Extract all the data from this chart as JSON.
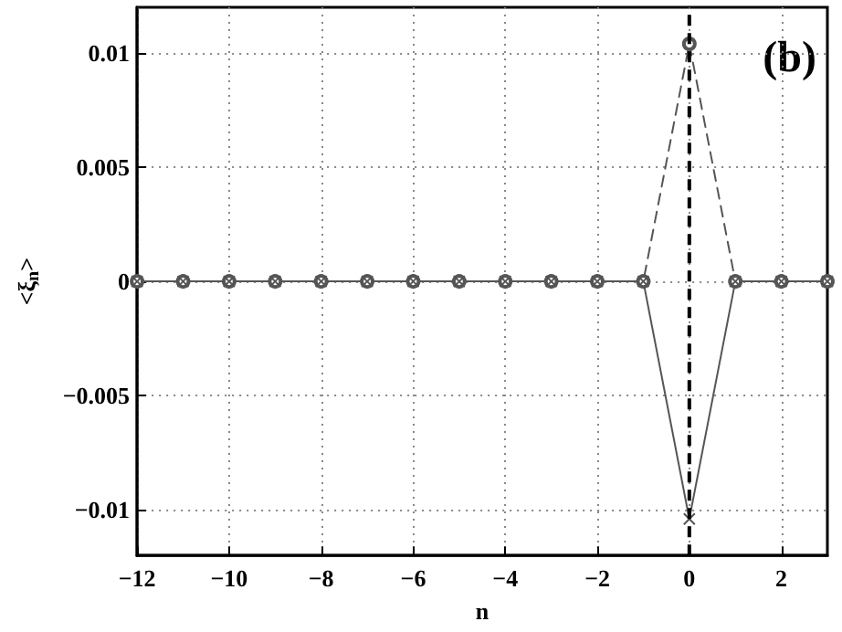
{
  "chart_data": {
    "type": "line",
    "xlabel": "n",
    "ylabel": "<ξ$_{n}$>",
    "annotations": [
      "(b)"
    ],
    "x": [
      -12,
      -11,
      -10,
      -9,
      -8,
      -7,
      -6,
      -5,
      -4,
      -3,
      -2,
      -1,
      0,
      1,
      2,
      3
    ],
    "series": [
      {
        "color": "#555555",
        "marker": "circle",
        "line_style": "dashed",
        "values": [
          0,
          0,
          0,
          0,
          0,
          0,
          0,
          0,
          0,
          0,
          0,
          0,
          0.0104,
          0,
          0,
          0
        ]
      },
      {
        "color": "#555555",
        "marker": "cross",
        "line_style": "solid",
        "values": [
          0,
          0,
          0,
          0,
          0,
          0,
          0,
          0,
          0,
          0,
          0,
          0,
          -0.0104,
          0,
          0,
          0
        ]
      }
    ],
    "xlim": [
      -12,
      3
    ],
    "xticks": [
      -12,
      -10,
      -8,
      -6,
      -4,
      -2,
      0,
      2
    ],
    "ylim": [
      -0.012,
      0.012
    ],
    "yticks": [
      -0.01,
      -0.005,
      0,
      0.005,
      0.01
    ],
    "ref_lines": [
      {
        "axis": "x",
        "value": 0,
        "color": "#000000",
        "line_style": "dashed"
      }
    ],
    "grid": true
  }
}
